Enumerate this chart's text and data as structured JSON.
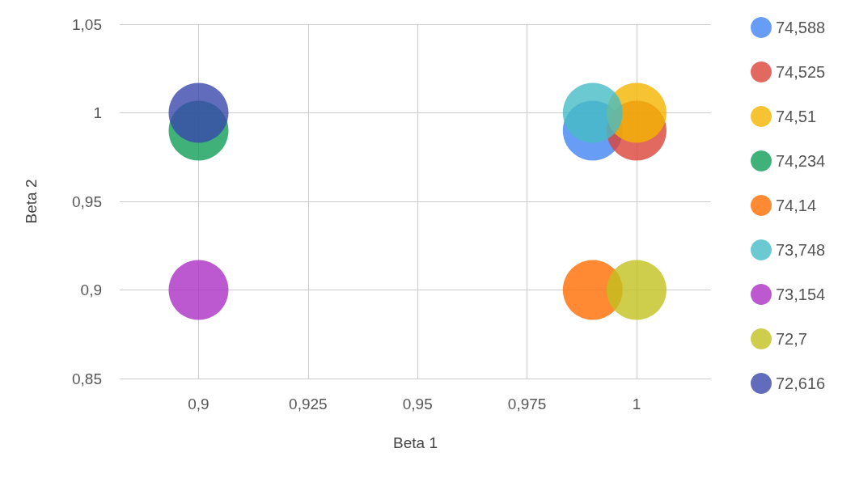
{
  "chart_data": {
    "type": "bubble",
    "xlabel": "Beta 1",
    "ylabel": "Beta 2",
    "xlim": [
      0.882,
      1.017
    ],
    "ylim": [
      0.85,
      1.05
    ],
    "xticks": [
      {
        "value": 0.9,
        "label": "0,9"
      },
      {
        "value": 0.925,
        "label": "0,925"
      },
      {
        "value": 0.95,
        "label": "0,95"
      },
      {
        "value": 0.975,
        "label": "0,975"
      },
      {
        "value": 1,
        "label": "1"
      }
    ],
    "yticks": [
      {
        "value": 0.85,
        "label": "0,85"
      },
      {
        "value": 0.9,
        "label": "0,9"
      },
      {
        "value": 0.95,
        "label": "0,95"
      },
      {
        "value": 1,
        "label": "1"
      },
      {
        "value": 1.05,
        "label": "1,05"
      }
    ],
    "grid": true,
    "legend": "right",
    "series": [
      {
        "name": "74,588",
        "color": "#4285f4",
        "x": [
          0.99
        ],
        "values": [
          0.99
        ],
        "sizes": [
          1
        ]
      },
      {
        "name": "74,525",
        "color": "#db4437",
        "x": [
          1
        ],
        "values": [
          0.99
        ],
        "sizes": [
          1
        ]
      },
      {
        "name": "74,51",
        "color": "#f4b400",
        "x": [
          1
        ],
        "values": [
          1
        ],
        "sizes": [
          1
        ]
      },
      {
        "name": "74,234",
        "color": "#0f9d58",
        "x": [
          0.9
        ],
        "values": [
          0.99
        ],
        "sizes": [
          1
        ]
      },
      {
        "name": "74,14",
        "color": "#ff6d00",
        "x": [
          0.99
        ],
        "values": [
          0.9
        ],
        "sizes": [
          1
        ]
      },
      {
        "name": "73,748",
        "color": "#46bdc6",
        "x": [
          0.99
        ],
        "values": [
          1
        ],
        "sizes": [
          1
        ]
      },
      {
        "name": "73,154",
        "color": "#ab30c4",
        "x": [
          0.9
        ],
        "values": [
          0.9
        ],
        "sizes": [
          1
        ]
      },
      {
        "name": "72,7",
        "color": "#c2c11f",
        "x": [
          1
        ],
        "values": [
          0.9
        ],
        "sizes": [
          1
        ]
      },
      {
        "name": "72,616",
        "color": "#3949ab",
        "x": [
          0.9
        ],
        "values": [
          1
        ],
        "sizes": [
          1
        ]
      }
    ]
  }
}
